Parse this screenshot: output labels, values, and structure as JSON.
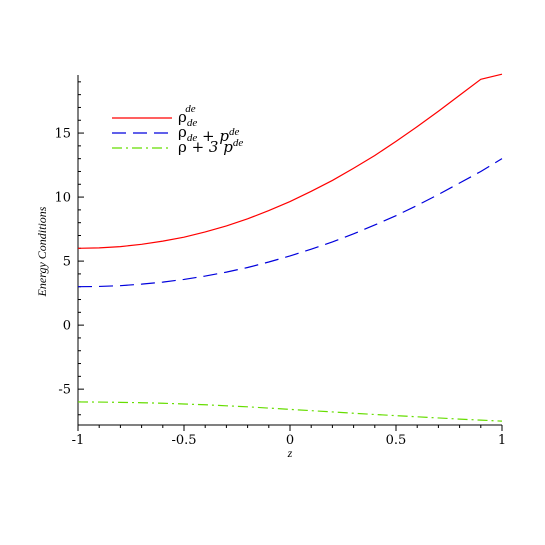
{
  "chart_data": {
    "type": "line",
    "xlabel": "z",
    "ylabel": "Energy Conditions",
    "xlim": [
      -1,
      1
    ],
    "ylim": [
      -7.8,
      19.3
    ],
    "x_ticks": [
      "-1",
      "-0.5",
      "0",
      "0.5",
      "1"
    ],
    "y_ticks": [
      "-5",
      "0",
      "5",
      "10",
      "15"
    ],
    "grid": false,
    "legend_position": "top-left",
    "x": [
      -1,
      -0.9,
      -0.8,
      -0.7,
      -0.6,
      -0.5,
      -0.4,
      -0.3,
      -0.2,
      -0.1,
      0,
      0.1,
      0.2,
      0.3,
      0.4,
      0.5,
      0.6,
      0.7,
      0.8,
      0.9,
      1
    ],
    "series": [
      {
        "legend": {
          "base": "ρ",
          "sub": "de",
          "sup": "de",
          "rest": ""
        },
        "color": "#ff0000",
        "dash": "solid",
        "values": [
          6.0,
          6.03,
          6.13,
          6.31,
          6.56,
          6.87,
          7.28,
          7.75,
          8.3,
          8.95,
          9.65,
          10.45,
          11.3,
          12.25,
          13.25,
          14.35,
          15.5,
          16.7,
          17.95,
          19.2,
          19.6
        ]
      },
      {
        "legend": {
          "base": "ρ",
          "sub": "de",
          "sup": "",
          "rest": " + p",
          "rest_sup": "de"
        },
        "color": "#0000dd",
        "dash": "dashed",
        "values": [
          3.0,
          3.02,
          3.08,
          3.2,
          3.36,
          3.57,
          3.83,
          4.14,
          4.5,
          4.93,
          5.4,
          5.93,
          6.5,
          7.13,
          7.82,
          8.55,
          9.35,
          10.2,
          11.1,
          12.0,
          13.0
        ]
      },
      {
        "legend": {
          "base": "ρ",
          "sub": "",
          "sup": "",
          "rest": " + 3 p",
          "rest_sup": "de"
        },
        "color": "#66dd00",
        "dash": "dashdot",
        "values": [
          -6.0,
          -6.01,
          -6.03,
          -6.06,
          -6.1,
          -6.16,
          -6.22,
          -6.3,
          -6.38,
          -6.48,
          -6.58,
          -6.68,
          -6.78,
          -6.88,
          -6.98,
          -7.07,
          -7.16,
          -7.25,
          -7.34,
          -7.42,
          -7.5
        ]
      }
    ]
  }
}
